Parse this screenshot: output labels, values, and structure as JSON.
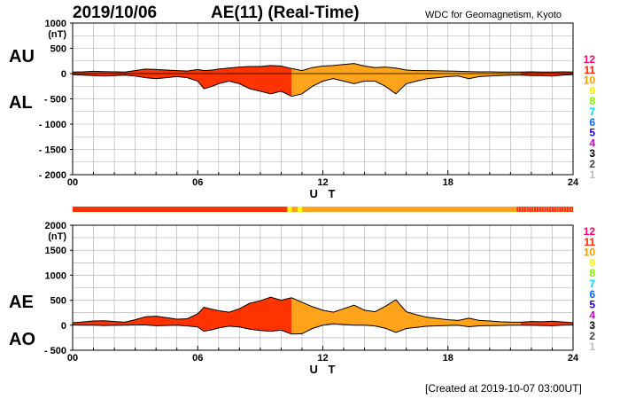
{
  "header": {
    "date": "2019/10/06",
    "title": "AE(11) (Real-Time)",
    "org": "WDC for Geomagnetism, Kyoto",
    "created": "[Created at 2019-10-07 03:00UT]"
  },
  "colors": {
    "red": "#ff3300",
    "orange": "#ffa31a",
    "yellow": "#ffff00",
    "grid": "#aaaaaa",
    "line": "#000000"
  },
  "chart_data": [
    {
      "type": "area",
      "title": "AU / AL",
      "labels": {
        "upper": "AU",
        "lower": "AL"
      },
      "yunit": "(nT)",
      "ylim": [
        -2000,
        1000
      ],
      "yticks": [
        "1000",
        "500",
        "0",
        "- 500",
        "- 1000",
        "- 1500",
        "- 2000"
      ],
      "ytick_values": [
        1000,
        500,
        0,
        -500,
        -1000,
        -1500,
        -2000
      ],
      "xlim": [
        0,
        24
      ],
      "xticks": [
        "00",
        "06",
        "12",
        "18",
        "24"
      ],
      "xtick_values": [
        0,
        6,
        12,
        18,
        24
      ],
      "xlabel": "U T",
      "x": [
        0,
        0.5,
        1,
        1.5,
        2,
        2.5,
        3,
        3.5,
        4,
        4.5,
        5,
        5.5,
        6,
        6.3,
        6.7,
        7,
        7.5,
        8,
        8.5,
        9,
        9.5,
        10,
        10.5,
        11,
        11.5,
        12,
        12.5,
        13,
        13.5,
        14,
        14.5,
        15,
        15.5,
        16,
        16.5,
        17,
        17.5,
        18,
        18.5,
        19,
        19.5,
        20,
        20.5,
        21,
        21.5,
        22,
        22.5,
        23,
        23.5,
        24
      ],
      "series": [
        {
          "name": "AU",
          "values": [
            30,
            35,
            45,
            40,
            35,
            30,
            60,
            90,
            80,
            70,
            60,
            50,
            80,
            60,
            70,
            90,
            110,
            130,
            140,
            140,
            160,
            150,
            100,
            60,
            120,
            150,
            160,
            180,
            200,
            150,
            120,
            130,
            110,
            70,
            60,
            60,
            55,
            50,
            45,
            40,
            35,
            35,
            30,
            30,
            30,
            35,
            30,
            30,
            35,
            30
          ]
        },
        {
          "name": "AL",
          "values": [
            -20,
            -30,
            -40,
            -50,
            -40,
            -30,
            -50,
            -80,
            -100,
            -80,
            -60,
            -80,
            -150,
            -300,
            -250,
            -200,
            -150,
            -200,
            -300,
            -350,
            -400,
            -350,
            -450,
            -400,
            -250,
            -150,
            -100,
            -150,
            -200,
            -150,
            -150,
            -250,
            -400,
            -200,
            -150,
            -100,
            -80,
            -60,
            -50,
            -100,
            -60,
            -50,
            -40,
            -30,
            -30,
            -40,
            -40,
            -50,
            -30,
            -20
          ]
        }
      ]
    },
    {
      "type": "area",
      "title": "AE / AO",
      "labels": {
        "upper": "AE",
        "lower": "AO"
      },
      "yunit": "(nT)",
      "ylim": [
        -500,
        2000
      ],
      "yticks": [
        "2000",
        "1500",
        "1000",
        "500",
        "0",
        "- 500"
      ],
      "ytick_values": [
        2000,
        1500,
        1000,
        500,
        0,
        -500
      ],
      "xlim": [
        0,
        24
      ],
      "xticks": [
        "00",
        "06",
        "12",
        "18",
        "24"
      ],
      "xtick_values": [
        0,
        6,
        12,
        18,
        24
      ],
      "xlabel": "U T"
    }
  ],
  "activity_bar": [
    {
      "from": 0,
      "to": 10.3,
      "level": 11
    },
    {
      "from": 10.3,
      "to": 10.5,
      "level": 9
    },
    {
      "from": 10.5,
      "to": 10.8,
      "level": 10
    },
    {
      "from": 10.8,
      "to": 11.0,
      "level": 9
    },
    {
      "from": 11.0,
      "to": 21.3,
      "level": 10
    },
    {
      "from": 21.3,
      "to": 24,
      "level": 11
    }
  ],
  "level_legend": [
    {
      "label": "12",
      "color": "#ff0066"
    },
    {
      "label": "11",
      "color": "#ff2200"
    },
    {
      "label": "10",
      "color": "#ff9900"
    },
    {
      "label": "9",
      "color": "#ffee00"
    },
    {
      "label": "8",
      "color": "#88ee00"
    },
    {
      "label": "7",
      "color": "#00ddee"
    },
    {
      "label": "6",
      "color": "#0066ff"
    },
    {
      "label": "5",
      "color": "#2200cc"
    },
    {
      "label": "4",
      "color": "#cc00cc"
    },
    {
      "label": "3",
      "color": "#000000"
    },
    {
      "label": "2",
      "color": "#444444"
    },
    {
      "label": "1",
      "color": "#bbbbbb"
    }
  ]
}
